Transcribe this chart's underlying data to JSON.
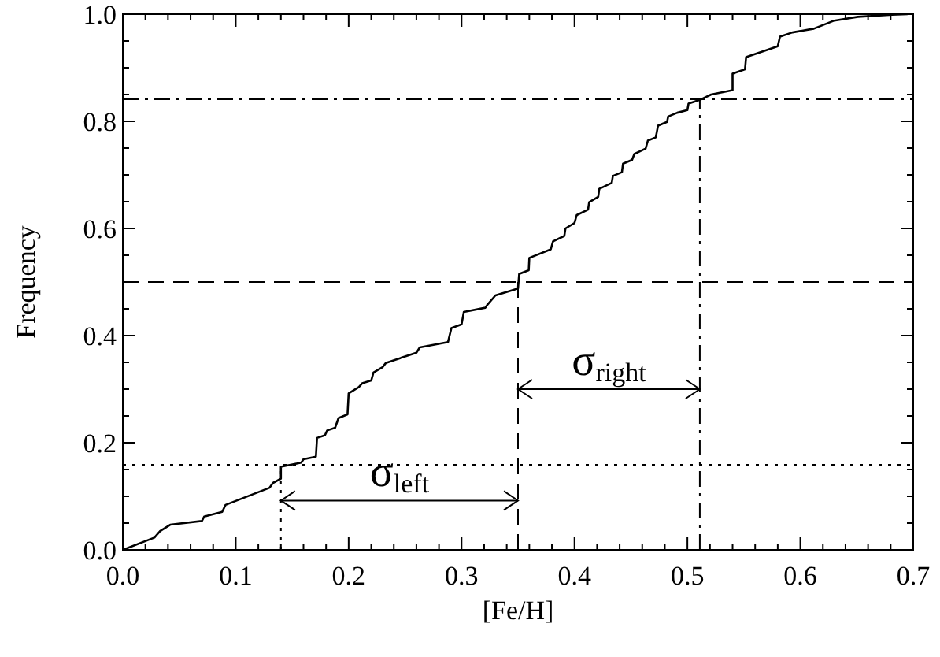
{
  "chart_data": {
    "type": "line",
    "xlabel": "[Fe/H]",
    "ylabel": "Frequency",
    "xlim": [
      0,
      0.7
    ],
    "ylim": [
      0,
      1.0
    ],
    "xticks": [
      {
        "value": 0,
        "label": "0.0"
      },
      {
        "value": 0.02,
        "label": null
      },
      {
        "value": 0.04,
        "label": null
      },
      {
        "value": 0.06,
        "label": null
      },
      {
        "value": 0.08,
        "label": null
      },
      {
        "value": 0.1,
        "label": "0.1"
      },
      {
        "value": 0.12,
        "label": null
      },
      {
        "value": 0.14,
        "label": null
      },
      {
        "value": 0.16,
        "label": null
      },
      {
        "value": 0.18,
        "label": null
      },
      {
        "value": 0.2,
        "label": "0.2"
      },
      {
        "value": 0.22,
        "label": null
      },
      {
        "value": 0.24,
        "label": null
      },
      {
        "value": 0.26,
        "label": null
      },
      {
        "value": 0.28,
        "label": null
      },
      {
        "value": 0.3,
        "label": "0.3"
      },
      {
        "value": 0.32,
        "label": null
      },
      {
        "value": 0.34,
        "label": null
      },
      {
        "value": 0.36,
        "label": null
      },
      {
        "value": 0.38,
        "label": null
      },
      {
        "value": 0.4,
        "label": "0.4"
      },
      {
        "value": 0.42,
        "label": null
      },
      {
        "value": 0.44,
        "label": null
      },
      {
        "value": 0.46,
        "label": null
      },
      {
        "value": 0.48,
        "label": null
      },
      {
        "value": 0.5,
        "label": "0.5"
      },
      {
        "value": 0.52,
        "label": null
      },
      {
        "value": 0.54,
        "label": null
      },
      {
        "value": 0.56,
        "label": null
      },
      {
        "value": 0.58,
        "label": null
      },
      {
        "value": 0.6,
        "label": "0.6"
      },
      {
        "value": 0.62,
        "label": null
      },
      {
        "value": 0.64,
        "label": null
      },
      {
        "value": 0.66,
        "label": null
      },
      {
        "value": 0.68,
        "label": null
      },
      {
        "value": 0.7,
        "label": "0.7"
      }
    ],
    "yticks": [
      {
        "value": 0,
        "label": "0.0"
      },
      {
        "value": 0.05,
        "label": null
      },
      {
        "value": 0.1,
        "label": null
      },
      {
        "value": 0.15,
        "label": null
      },
      {
        "value": 0.2,
        "label": "0.2"
      },
      {
        "value": 0.25,
        "label": null
      },
      {
        "value": 0.3,
        "label": null
      },
      {
        "value": 0.35,
        "label": null
      },
      {
        "value": 0.4,
        "label": "0.4"
      },
      {
        "value": 0.45,
        "label": null
      },
      {
        "value": 0.5,
        "label": null
      },
      {
        "value": 0.55,
        "label": null
      },
      {
        "value": 0.6,
        "label": "0.6"
      },
      {
        "value": 0.65,
        "label": null
      },
      {
        "value": 0.7,
        "label": null
      },
      {
        "value": 0.75,
        "label": null
      },
      {
        "value": 0.8,
        "label": "0.8"
      },
      {
        "value": 0.85,
        "label": null
      },
      {
        "value": 0.9,
        "label": null
      },
      {
        "value": 0.95,
        "label": null
      },
      {
        "value": 1.0,
        "label": "1.0"
      }
    ],
    "grid": false,
    "marker": "none",
    "line_style": "solid",
    "series": [
      {
        "color": "#000000",
        "x": [
          0,
          0.028,
          0.033,
          0.042,
          0.07,
          0.072,
          0.088,
          0.091,
          0.13,
          0.133,
          0.14,
          0.14,
          0.158,
          0.16,
          0.171,
          0.172,
          0.179,
          0.181,
          0.188,
          0.191,
          0.199,
          0.2,
          0.209,
          0.212,
          0.22,
          0.222,
          0.23,
          0.233,
          0.26,
          0.263,
          0.288,
          0.291,
          0.3,
          0.302,
          0.321,
          0.323,
          0.33,
          0.35,
          0.351,
          0.3595,
          0.36,
          0.379,
          0.381,
          0.391,
          0.392,
          0.4,
          0.402,
          0.412,
          0.413,
          0.421,
          0.422,
          0.433,
          0.434,
          0.442,
          0.443,
          0.451,
          0.453,
          0.463,
          0.465,
          0.472,
          0.474,
          0.482,
          0.483,
          0.491,
          0.5,
          0.501,
          0.511,
          0.521,
          0.54,
          0.54,
          0.551,
          0.552,
          0.58,
          0.582,
          0.593,
          0.612,
          0.63,
          0.651,
          0.681,
          0.695
        ],
        "values": [
          0,
          0.023,
          0.035,
          0.047,
          0.054,
          0.062,
          0.071,
          0.084,
          0.116,
          0.125,
          0.133,
          0.155,
          0.163,
          0.169,
          0.174,
          0.209,
          0.214,
          0.223,
          0.228,
          0.246,
          0.253,
          0.292,
          0.304,
          0.311,
          0.316,
          0.331,
          0.341,
          0.349,
          0.368,
          0.378,
          0.388,
          0.414,
          0.421,
          0.444,
          0.452,
          0.458,
          0.475,
          0.488,
          0.515,
          0.522,
          0.545,
          0.561,
          0.576,
          0.586,
          0.6,
          0.61,
          0.625,
          0.635,
          0.649,
          0.659,
          0.674,
          0.685,
          0.698,
          0.705,
          0.721,
          0.728,
          0.739,
          0.749,
          0.764,
          0.77,
          0.792,
          0.799,
          0.809,
          0.816,
          0.821,
          0.833,
          0.84,
          0.85,
          0.858,
          0.889,
          0.897,
          0.92,
          0.94,
          0.958,
          0.966,
          0.973,
          0.988,
          0.995,
          0.999,
          1.0
        ]
      }
    ],
    "ref_lines": [
      {
        "axis": "y",
        "value": 0.159,
        "line_style": "dotted"
      },
      {
        "axis": "y",
        "value": 0.5,
        "line_style": "dashed"
      },
      {
        "axis": "y",
        "value": 0.841,
        "line_style": "dashdot"
      },
      {
        "axis": "x",
        "value": 0.14,
        "line_style": "dotted"
      },
      {
        "axis": "x",
        "value": 0.35,
        "line_style": "dashed"
      },
      {
        "axis": "x",
        "value": 0.511,
        "line_style": "dashdot"
      }
    ],
    "annotations": [
      {
        "text": "σ$_{left}$",
        "x": 0.14,
        "y": 0.092
      },
      {
        "text": "σ$_{right}$",
        "x": 0.35,
        "y": 0.3
      }
    ]
  }
}
